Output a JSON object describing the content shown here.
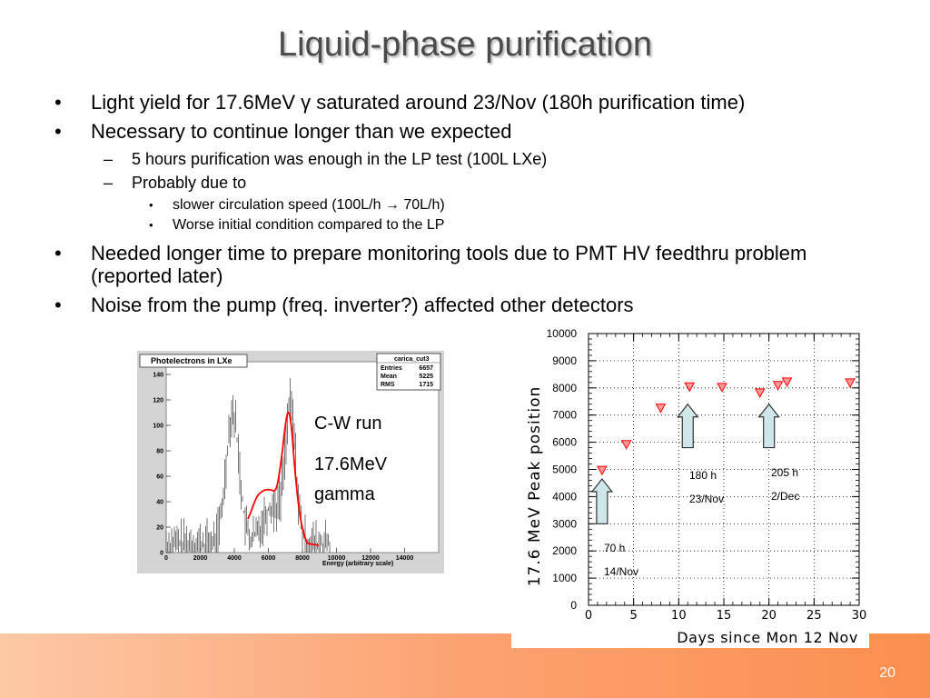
{
  "title": "Liquid-phase purification",
  "bullets": {
    "b1": "Light yield for 17.6MeV γ saturated around 23/Nov (180h purification time)",
    "b2": "Necessary to continue longer than we expected",
    "b2_1": "5 hours purification was enough in the LP test (100L LXe)",
    "b2_2": "Probably due to",
    "b2_2_1": "slower circulation speed (100L/h → 70L/h)",
    "b2_2_2": "Worse initial condition compared to the LP",
    "b3": "Needed longer time to prepare monitoring tools due to PMT HV feedthru problem (reported later)",
    "b4": "Noise from the pump (freq. inverter?) affected other detectors"
  },
  "histogram": {
    "title": "Photelectrons in LXe",
    "stats_title": "carica_cut3",
    "stats": [
      {
        "label": "Entries",
        "value": "6657"
      },
      {
        "label": "Mean",
        "value": "5225"
      },
      {
        "label": "RMS",
        "value": "1715"
      }
    ],
    "xlabel": "Energy (arbitrary scale)",
    "xticks": [
      "0",
      "2000",
      "4000",
      "6000",
      "8000",
      "10000",
      "12000",
      "14000"
    ],
    "yticks": [
      "0",
      "20",
      "40",
      "60",
      "80",
      "100",
      "120",
      "140"
    ]
  },
  "notes": {
    "run": "C-W run",
    "energy": "17.6MeV",
    "particle": "gamma"
  },
  "chart_data": {
    "type": "scatter",
    "xlabel": "Days since Mon 12 Nov",
    "ylabel": "17.6 MeV Peak position",
    "xlim": [
      0,
      30
    ],
    "ylim": [
      0,
      10000
    ],
    "xticks": [
      "0",
      "5",
      "10",
      "15",
      "20",
      "25",
      "30"
    ],
    "yticks": [
      "0",
      "1000",
      "2000",
      "3000",
      "4000",
      "5000",
      "6000",
      "7000",
      "8000",
      "9000",
      "10000"
    ],
    "x": [
      1.5,
      4.2,
      8.0,
      11.2,
      14.8,
      19.0,
      21.0,
      22.0,
      29.0
    ],
    "y": [
      4980,
      5930,
      7270,
      8050,
      8030,
      7830,
      8100,
      8230,
      8200
    ],
    "annotations": [
      {
        "line1": "70 h",
        "line2": "14/Nov"
      },
      {
        "line1": "180 h",
        "line2": "23/Nov"
      },
      {
        "line1": "205 h",
        "line2": "2/Dec"
      }
    ],
    "marker_color": "#ff0000",
    "arrow_color": "#cfe7ea"
  },
  "page_number": "20"
}
